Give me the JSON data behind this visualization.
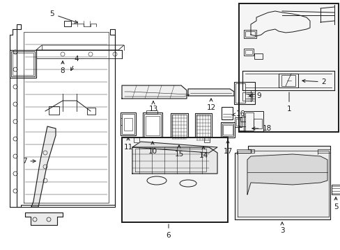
{
  "bg": "#ffffff",
  "lc": "#1a1a1a",
  "fs_label": 7.5,
  "fig_w": 4.89,
  "fig_h": 3.6,
  "dpi": 100
}
